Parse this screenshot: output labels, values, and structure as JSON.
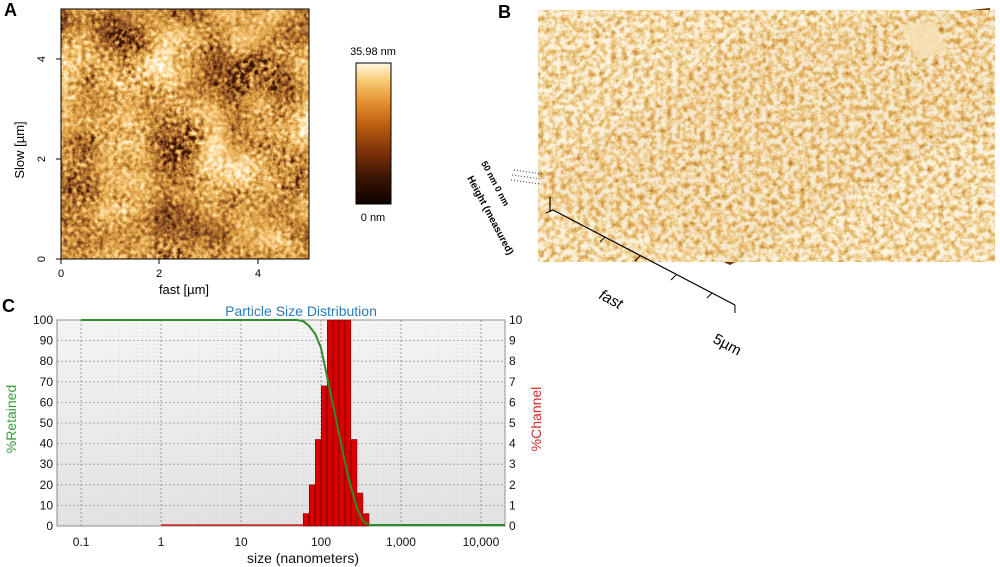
{
  "panels": {
    "a": "A",
    "b": "B",
    "c": "C"
  },
  "afm_map": {
    "x_label": "fast [µm]",
    "y_label": "Slow [µm]",
    "x_ticks": [
      "0",
      "2",
      "4"
    ],
    "y_ticks": [
      "0",
      "2",
      "4"
    ],
    "x_range": [
      0,
      5
    ],
    "y_range": [
      0,
      5
    ],
    "colorbar_max": "35.98 nm",
    "colorbar_min": "0 nm",
    "colors": [
      "#0d0200",
      "#3a1404",
      "#7a3008",
      "#b85c10",
      "#e59030",
      "#f7c870",
      "#fff8e0"
    ]
  },
  "afm_3d": {
    "axis_fast_label": "fast",
    "axis_end_label": "5µm",
    "z_axis_label": "Height (measured)",
    "z_ticks": "50 nm  0 nm",
    "colors": [
      "#6e3508",
      "#b8651a",
      "#e0a040",
      "#f6e2b8"
    ]
  },
  "chart_data": {
    "type": "bar",
    "title": "Particle Size Distribution",
    "xlabel": "size (nanometers)",
    "ylabel_left": "%Retained",
    "ylabel_right": "%Channel",
    "x_scale": "log",
    "xlim": [
      0.05,
      20000
    ],
    "x_tick_values": [
      0.1,
      1,
      10,
      100,
      1000,
      10000
    ],
    "x_tick_labels": [
      "0.1",
      "1",
      "10",
      "100",
      "1,000",
      "10,000"
    ],
    "ylim_left": [
      0,
      100
    ],
    "ylim_right": [
      0,
      10
    ],
    "y_left_ticks": [
      "0",
      "10",
      "20",
      "30",
      "40",
      "50",
      "60",
      "70",
      "80",
      "90",
      "100"
    ],
    "y_right_ticks": [
      "0",
      "1",
      "2",
      "3",
      "4",
      "5",
      "6",
      "7",
      "8",
      "9",
      "10"
    ],
    "grid": true,
    "series": [
      {
        "name": "%Channel",
        "kind": "bar",
        "axis": "right",
        "color": "#d90000",
        "bin_edges": [
          60,
          71.4,
          85,
          101,
          120,
          143,
          170,
          202,
          240,
          286,
          340,
          405
        ],
        "values": [
          0.6,
          2.0,
          4.2,
          6.8,
          10.0,
          10.0,
          10.0,
          10.0,
          4.2,
          1.6,
          0.6
        ]
      },
      {
        "name": "%Retained",
        "kind": "line",
        "axis": "left",
        "color": "#2e8b2e",
        "x": [
          0.1,
          1,
          30,
          50,
          60,
          70,
          85,
          100,
          120,
          143,
          170,
          202,
          240,
          286,
          340,
          405,
          500,
          1000,
          10000,
          20000
        ],
        "y": [
          100,
          100,
          100,
          100,
          99.4,
          97.4,
          93.2,
          86.4,
          72,
          58,
          44,
          30,
          18,
          8,
          2,
          0.3,
          0,
          0,
          0,
          0
        ]
      }
    ]
  }
}
